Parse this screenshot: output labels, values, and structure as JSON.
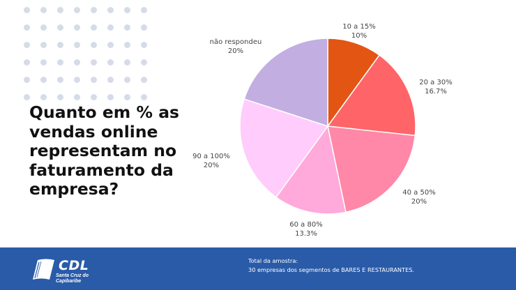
{
  "headline": {
    "lines": [
      "Quanto em % as",
      "vendas online",
      "representam no",
      "faturamento da",
      "empresa?"
    ]
  },
  "chart_data": {
    "type": "pie",
    "slices": [
      {
        "label": "10 a 15%",
        "value_label": "10%",
        "value": 10,
        "color": "#e35512"
      },
      {
        "label": "20 a 30%",
        "value_label": "16.7%",
        "value": 16.7,
        "color": "#ff6468"
      },
      {
        "label": "40 a 50%",
        "value_label": "20%",
        "value": 20,
        "color": "#ff87a7"
      },
      {
        "label": "60 a 80%",
        "value_label": "13.3%",
        "value": 13.3,
        "color": "#ffaadb"
      },
      {
        "label": "90 a 100%",
        "value_label": "20%",
        "value": 20,
        "color": "#ffccfc"
      },
      {
        "label": "não respondeu",
        "value_label": "20%",
        "value": 20,
        "color": "#c2aee1"
      }
    ]
  },
  "footer": {
    "logo_word": "CDL",
    "logo_sub_1": "Santa Cruz do",
    "logo_sub_2": "Capibaribe",
    "sample_title": "Total da amostra:",
    "sample_text": "30 empresas dos segmentos de BARES E RESTAURANTES."
  },
  "colors": {
    "footer_bg": "#2a5ba8",
    "dots": "#d5dce8"
  }
}
